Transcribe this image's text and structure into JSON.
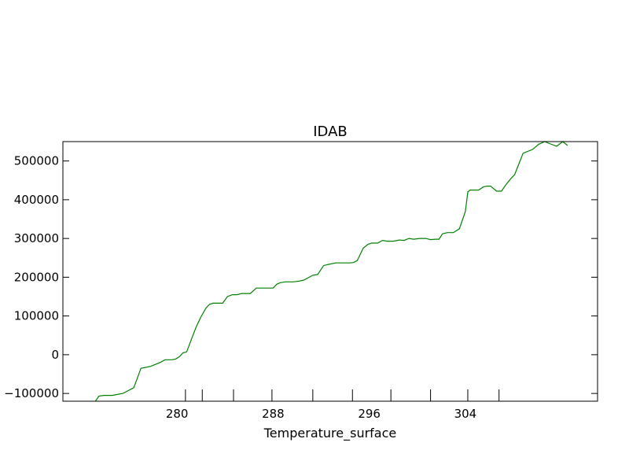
{
  "chart_data": {
    "type": "line",
    "title": "IDAB",
    "xlabel": "Temperature_surface",
    "ylabel": "",
    "xlim": [
      270.5,
      315.0
    ],
    "ylim": [
      -120000,
      550000
    ],
    "grid": false,
    "x_ticks": [
      280,
      288,
      296,
      304
    ],
    "x_tick_labels": [
      "280",
      "288",
      "296",
      "304"
    ],
    "x_minor_ticks": [
      280.7,
      282.1,
      284.7,
      287.9,
      291.3,
      294.6,
      297.8,
      301.1,
      304.2,
      306.8
    ],
    "y_ticks": [
      -100000,
      0,
      100000,
      200000,
      300000,
      400000,
      500000
    ],
    "y_tick_labels": [
      "−100000",
      "0",
      "100000",
      "200000",
      "300000",
      "400000",
      "500000"
    ],
    "series": [
      {
        "name": "",
        "color": "#008000",
        "x": [
          273.2,
          273.5,
          273.9,
          274.6,
          275.5,
          276.4,
          277.0,
          277.8,
          278.6,
          279.0,
          279.3,
          279.6,
          279.9,
          280.2,
          280.5,
          280.8,
          281.2,
          281.6,
          282.0,
          282.4,
          282.7,
          283.0,
          283.4,
          283.8,
          284.2,
          284.6,
          285.0,
          285.4,
          285.8,
          286.1,
          286.6,
          287.0,
          287.5,
          288.0,
          288.3,
          288.6,
          289.0,
          289.7,
          290.2,
          290.6,
          291.0,
          291.3,
          291.7,
          292.2,
          292.6,
          293.2,
          293.9,
          294.4,
          294.7,
          295.0,
          295.5,
          295.9,
          296.2,
          296.7,
          297.1,
          297.5,
          298.0,
          298.5,
          298.9,
          299.3,
          299.7,
          300.2,
          300.7,
          301.1,
          301.5,
          301.8,
          302.1,
          302.5,
          303.0,
          303.5,
          304.0,
          304.2,
          304.4,
          304.8,
          305.1,
          305.5,
          305.8,
          306.1,
          306.6,
          307.0,
          307.4,
          307.8,
          308.1
        ],
        "y": [
          -120000,
          -107000,
          -105000,
          -105000,
          -100000,
          -85000,
          -35000,
          -30000,
          -20000,
          -13000,
          -13000,
          -13000,
          -11000,
          -5000,
          5000,
          7000,
          40000,
          72000,
          98000,
          120000,
          130000,
          133000,
          133000,
          133000,
          150000,
          155000,
          155000,
          158000,
          158000,
          158000,
          172000,
          172000,
          172000,
          172000,
          182000,
          186000,
          188000,
          188000,
          190000,
          193000,
          200000,
          205000,
          207000,
          230000,
          233000,
          237000,
          237000,
          237000,
          238000,
          243000,
          275000,
          285000,
          288000,
          288000,
          295000,
          293000,
          293000,
          296000,
          295000,
          300000,
          298000,
          300000,
          300000,
          297000,
          298000,
          298000,
          312000,
          315000,
          315000,
          325000,
          370000,
          420000,
          425000,
          425000,
          425000,
          433000,
          435000,
          435000,
          422000,
          422000,
          440000,
          455000,
          465000
        ]
      }
    ]
  },
  "extra_series_tail": {
    "x": [
      308.8,
      309.6,
      310.1,
      310.6,
      311.0,
      311.6,
      312.1,
      312.5
    ],
    "y": [
      520000,
      530000,
      543000,
      550000,
      545000,
      538000,
      550000,
      540000
    ]
  }
}
